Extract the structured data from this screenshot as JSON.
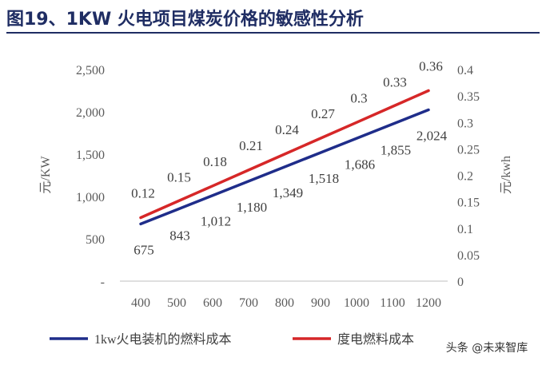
{
  "title": "图19、1KW 火电项目煤炭价格的敏感性分析",
  "watermark": "头条 @未来智库",
  "chart_data": {
    "type": "line",
    "x": [
      400,
      500,
      600,
      700,
      800,
      900,
      1000,
      1100,
      1200
    ],
    "series": [
      {
        "name": "1kw火电装机的燃料成本",
        "axis": "left",
        "color": "#1f2d8a",
        "values": [
          675,
          843,
          1012,
          1180,
          1349,
          1518,
          1686,
          1855,
          2024
        ],
        "labels": [
          "675",
          "843",
          "1,012",
          "1,180",
          "1,349",
          "1,518",
          "1,686",
          "1,855",
          "2,024"
        ]
      },
      {
        "name": "度电燃料成本",
        "axis": "right",
        "color": "#d62728",
        "values": [
          0.12,
          0.15,
          0.18,
          0.21,
          0.24,
          0.27,
          0.3,
          0.33,
          0.36
        ],
        "labels": [
          "0.12",
          "0.15",
          "0.18",
          "0.21",
          "0.24",
          "0.27",
          "0.3",
          "0.33",
          "0.36"
        ]
      }
    ],
    "y_left": {
      "label": "元/KW",
      "range": [
        0,
        2500
      ],
      "ticks": [
        0,
        500,
        1000,
        1500,
        2000,
        2500
      ],
      "tick_labels": [
        "-",
        "500",
        "1,000",
        "1,500",
        "2,000",
        "2,500"
      ]
    },
    "y_right": {
      "label": "元/kwh",
      "range": [
        0,
        0.4
      ],
      "ticks": [
        0,
        0.05,
        0.1,
        0.15,
        0.2,
        0.25,
        0.3,
        0.35,
        0.4
      ],
      "tick_labels": [
        "0",
        "0.05",
        "0.1",
        "0.15",
        "0.2",
        "0.25",
        "0.3",
        "0.35",
        "0.4"
      ]
    },
    "x_tick_labels": [
      "400",
      "500",
      "600",
      "700",
      "800",
      "900",
      "1000",
      "1100",
      "1200"
    ],
    "grid": false,
    "legend": "bottom"
  }
}
